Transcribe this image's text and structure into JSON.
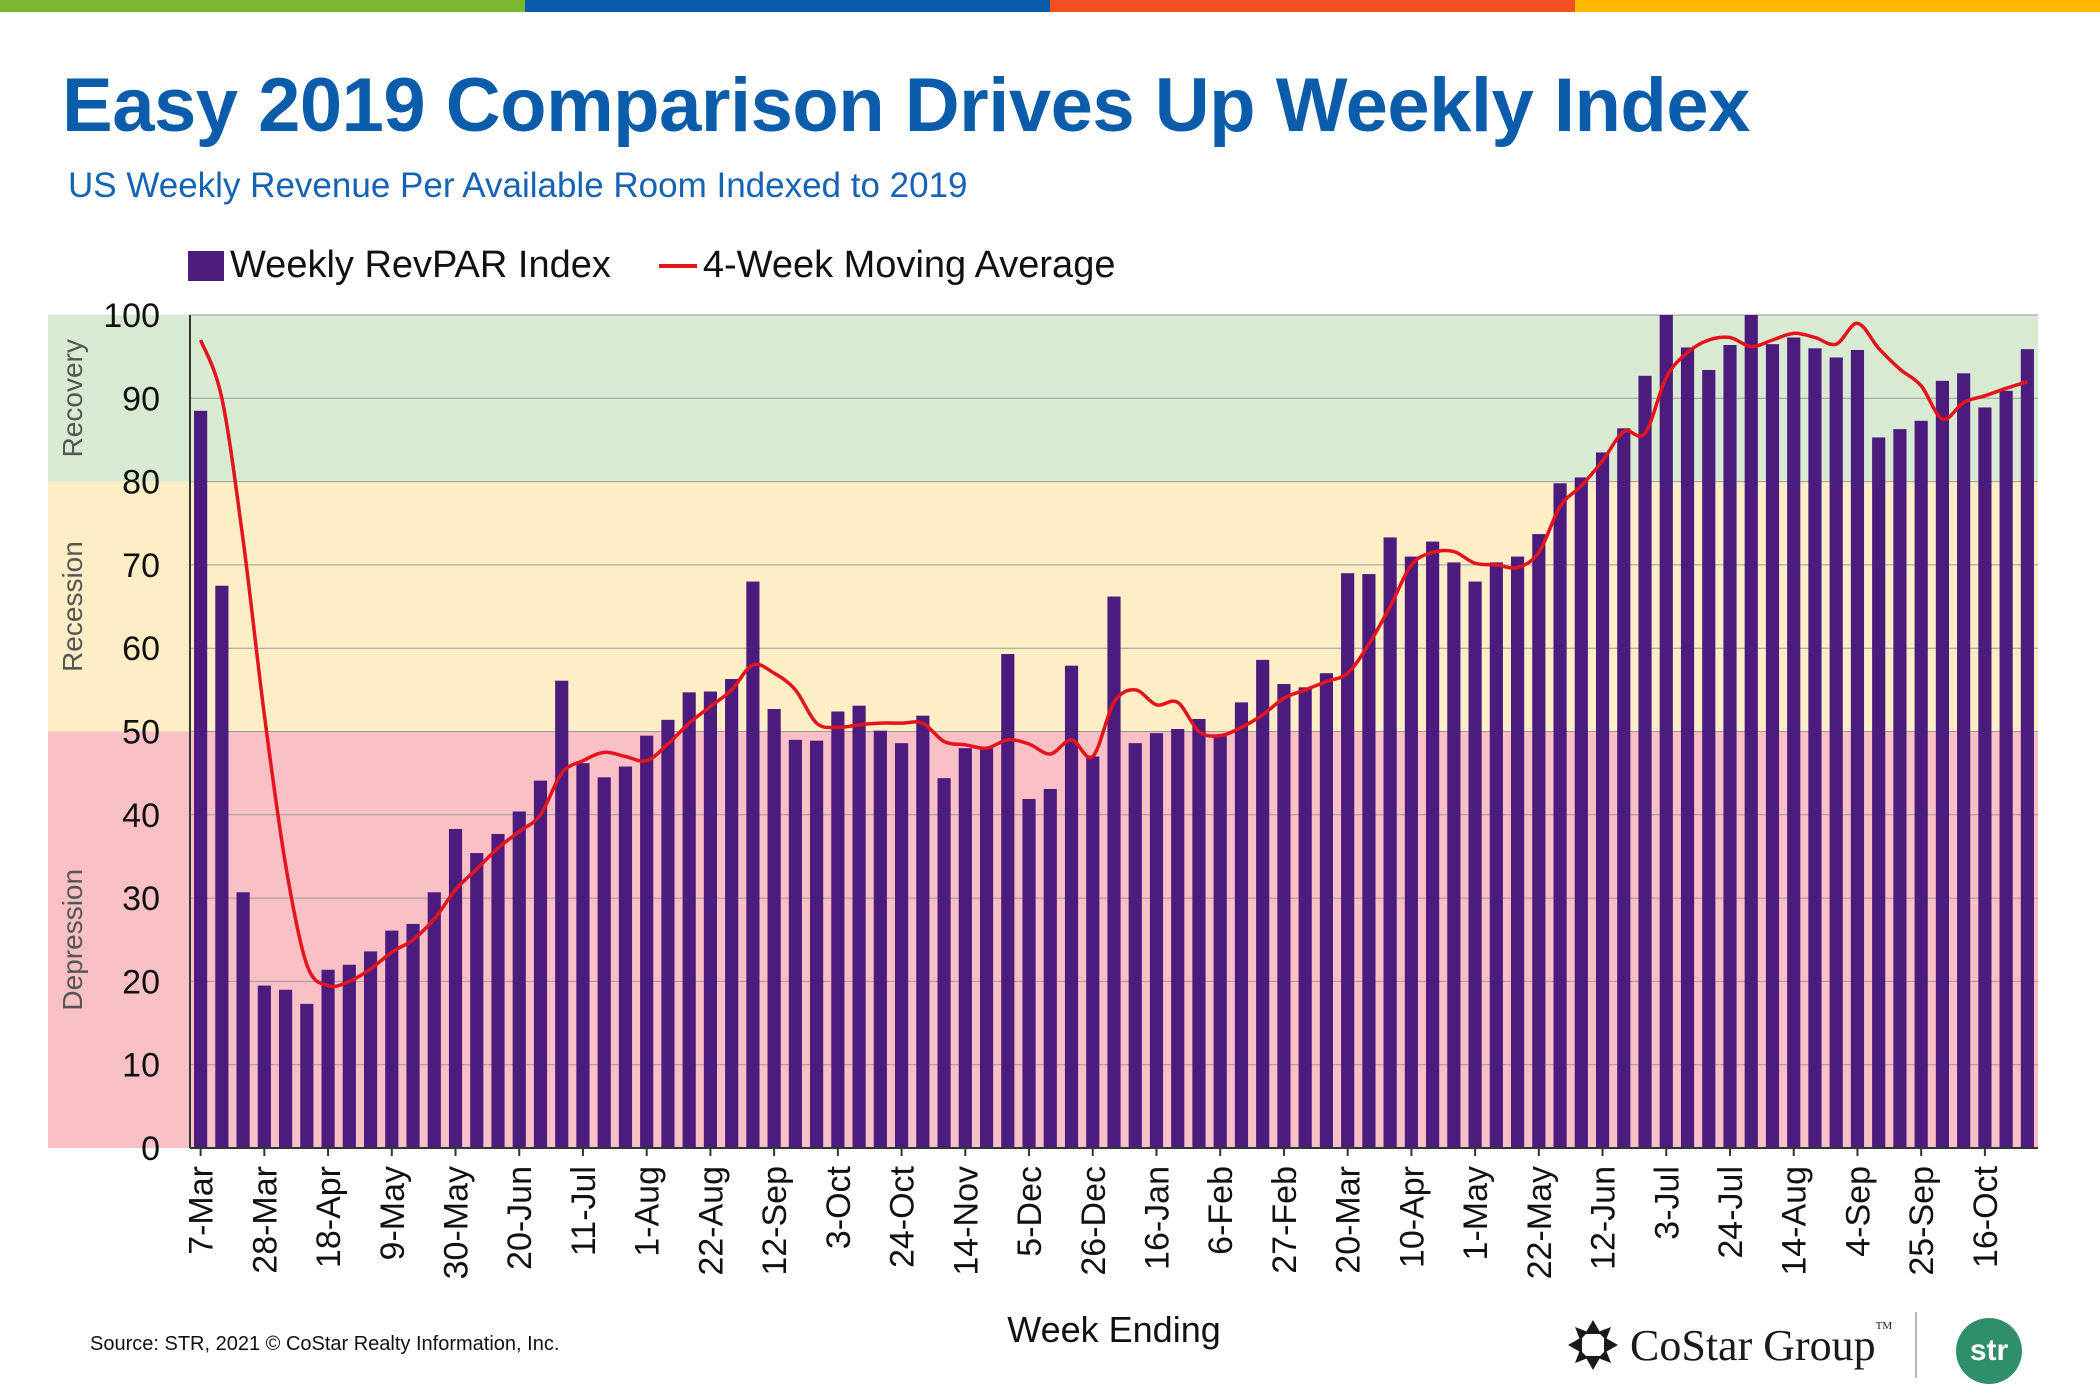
{
  "header": {
    "title": "Easy 2019 Comparison Drives Up Weekly Index",
    "subtitle": "US Weekly Revenue Per Available Room Indexed to 2019"
  },
  "colors": {
    "top_bar": [
      "#7cb82f",
      "#0b5cab",
      "#f25022",
      "#ffb900"
    ],
    "title": "#0b5cab",
    "bar": "#4b1c7e",
    "line": "#e3141c",
    "recovery_band": "#d9ead3",
    "recession_band": "#fdeec5",
    "depression_band": "#f9c0c5"
  },
  "legend": {
    "bar_label": "Weekly RevPAR Index",
    "line_label": "4-Week Moving Average"
  },
  "bands": [
    {
      "label": "Recovery",
      "from": 80,
      "to": 100
    },
    {
      "label": "Recession",
      "from": 50,
      "to": 80
    },
    {
      "label": "Depression",
      "from": 0,
      "to": 50
    }
  ],
  "chart_data": {
    "type": "bar",
    "title": "Easy 2019 Comparison Drives Up Weekly Index",
    "subtitle": "US Weekly Revenue Per Available Room Indexed to 2019",
    "xlabel": "Week Ending",
    "ylabel": "",
    "ylim": [
      0,
      100
    ],
    "yticks": [
      0,
      10,
      20,
      30,
      40,
      50,
      60,
      70,
      80,
      90,
      100
    ],
    "grid": true,
    "legend_position": "top-left",
    "x_tick_labels": [
      "7-Mar",
      "28-Mar",
      "18-Apr",
      "9-May",
      "30-May",
      "20-Jun",
      "11-Jul",
      "1-Aug",
      "22-Aug",
      "12-Sep",
      "3-Oct",
      "24-Oct",
      "14-Nov",
      "5-Dec",
      "26-Dec",
      "16-Jan",
      "6-Feb",
      "27-Feb",
      "20-Mar",
      "10-Apr",
      "1-May",
      "22-May",
      "12-Jun",
      "3-Jul",
      "24-Jul",
      "14-Aug",
      "4-Sep",
      "25-Sep",
      "16-Oct"
    ],
    "x_tick_every": 3,
    "series": [
      {
        "name": "Weekly RevPAR Index",
        "type": "bar",
        "values": [
          88.5,
          67.5,
          30.7,
          19.5,
          19.0,
          17.3,
          21.4,
          22.0,
          23.6,
          26.1,
          26.9,
          30.7,
          38.3,
          35.4,
          37.7,
          40.4,
          44.1,
          56.1,
          46.2,
          44.5,
          45.8,
          49.5,
          51.4,
          54.7,
          54.8,
          56.3,
          68.0,
          52.7,
          49.0,
          48.9,
          52.4,
          53.1,
          50.1,
          48.6,
          51.9,
          44.4,
          48.0,
          48.0,
          59.3,
          41.9,
          43.1,
          57.9,
          47.0,
          66.2,
          48.6,
          49.8,
          50.3,
          51.5,
          49.6,
          53.5,
          58.6,
          55.7,
          55.3,
          57.0,
          69.0,
          68.9,
          73.3,
          71.0,
          72.8,
          70.3,
          68.0,
          70.3,
          71.0,
          73.7,
          79.8,
          80.5,
          83.5,
          86.4,
          92.7,
          100.5,
          96.1,
          93.4,
          96.4,
          101.5,
          96.5,
          97.3,
          96.0,
          94.9,
          95.8,
          85.3,
          86.3,
          87.3,
          92.1,
          93.0,
          88.9,
          90.9,
          95.9
        ]
      },
      {
        "name": "4-Week Moving Average",
        "type": "line",
        "values": [
          97.0,
          90.0,
          73.0,
          52.0,
          34.0,
          22.0,
          19.5,
          20.0,
          21.5,
          23.5,
          25.0,
          27.5,
          31.0,
          33.5,
          36.0,
          38.0,
          40.0,
          45.0,
          46.5,
          47.5,
          47.0,
          46.5,
          48.5,
          51.0,
          53.0,
          55.0,
          58.0,
          57.0,
          55.0,
          51.0,
          50.5,
          50.8,
          51.0,
          51.0,
          51.0,
          48.8,
          48.4,
          48.0,
          49.0,
          48.5,
          47.3,
          49.0,
          47.0,
          53.5,
          55.0,
          53.2,
          53.5,
          50.0,
          49.5,
          50.5,
          52.0,
          54.0,
          55.0,
          56.0,
          57.0,
          60.5,
          65.0,
          70.0,
          71.5,
          71.6,
          70.2,
          70.0,
          69.7,
          71.5,
          77.0,
          79.5,
          82.5,
          86.0,
          85.8,
          92.5,
          95.5,
          97.0,
          97.3,
          96.2,
          97.0,
          97.8,
          97.3,
          96.5,
          99.0,
          96.0,
          93.5,
          91.5,
          87.5,
          89.5,
          90.3,
          91.2,
          92.0
        ]
      }
    ]
  },
  "footer": {
    "source": "Source: STR, 2021 © CoStar Realty Information, Inc.",
    "costar_logo": "CoStar Group",
    "costar_tm": "TM",
    "str_logo": "str"
  }
}
